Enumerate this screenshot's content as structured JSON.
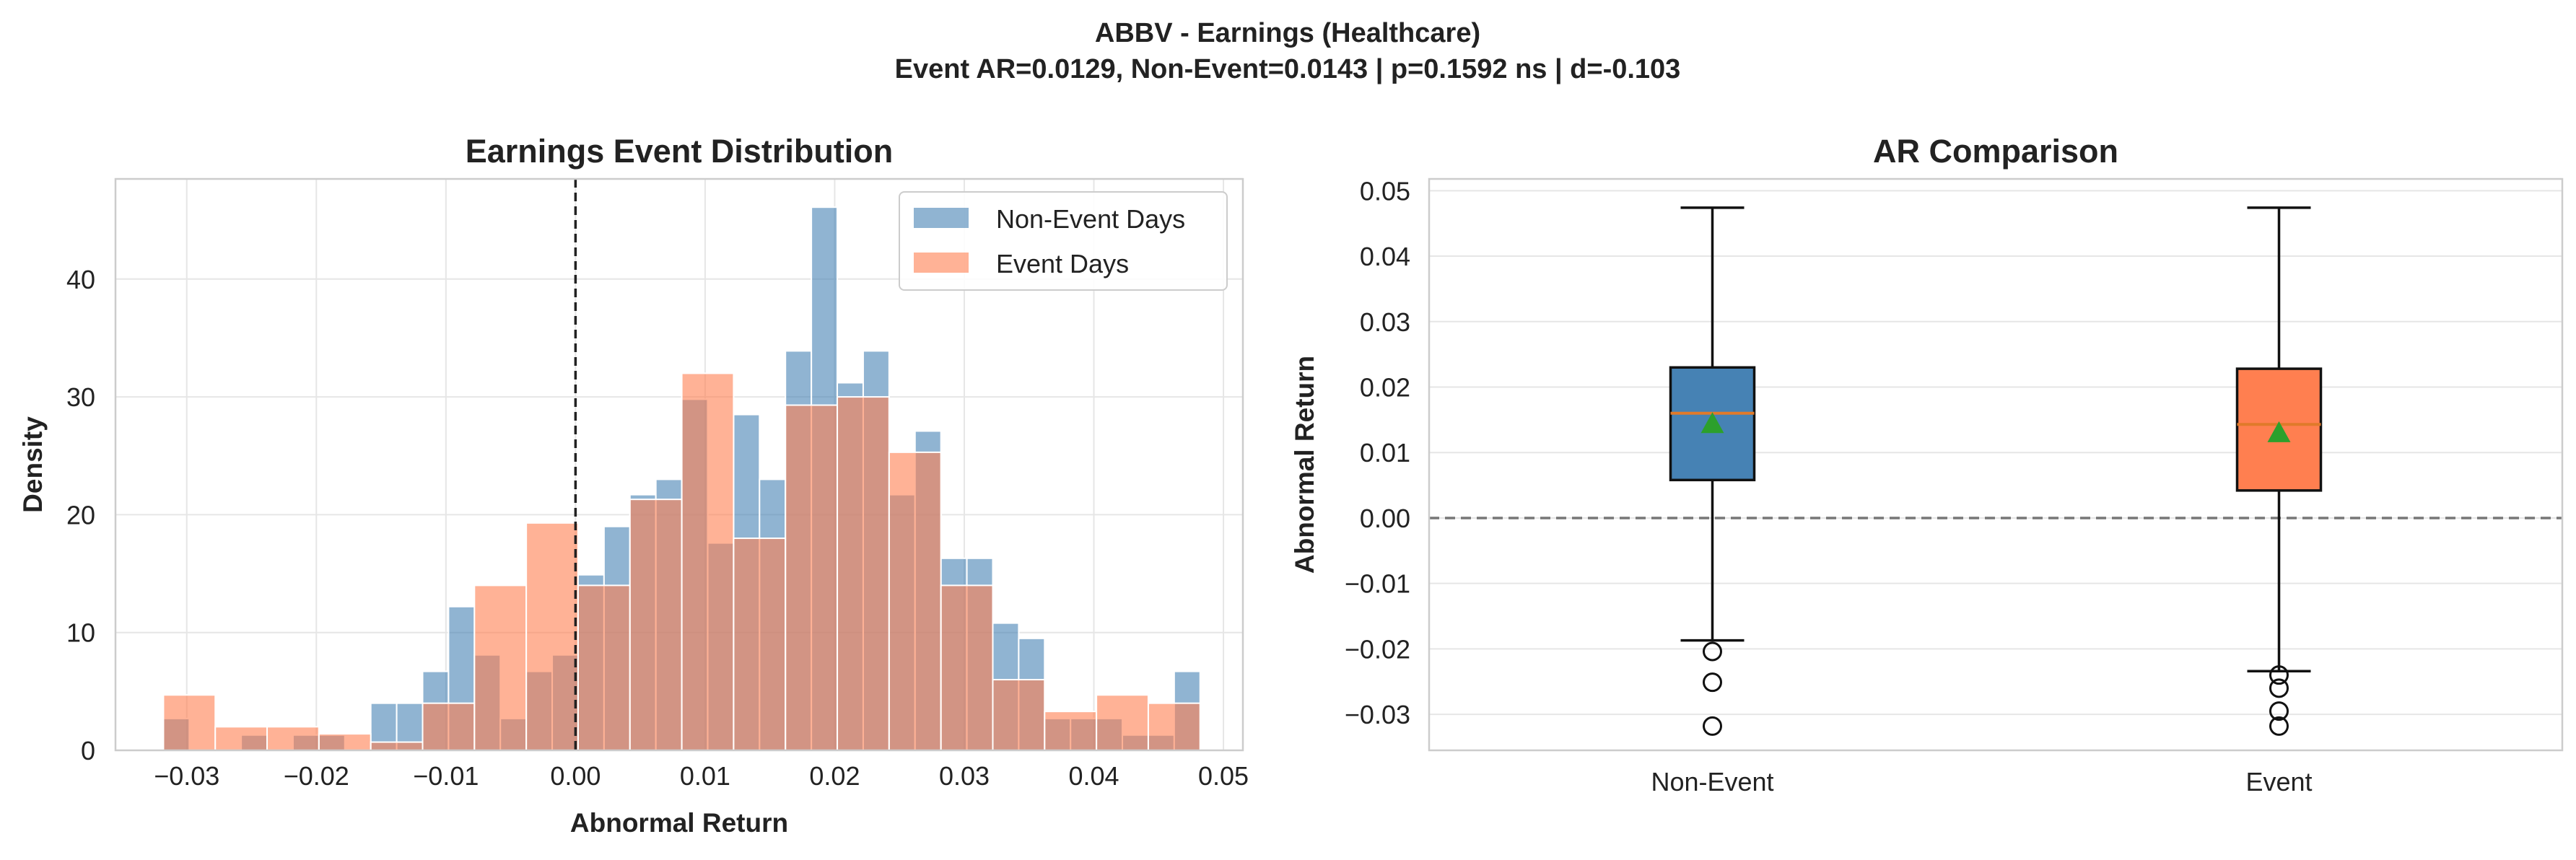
{
  "figure": {
    "title_line1": "ABBV - Earnings (Healthcare)",
    "title_line2": "Event AR=0.0129, Non-Event=0.0143 | p=0.1592 ns | d=-0.103"
  },
  "colors": {
    "non_event": "#4682b4",
    "event": "#ff7f50",
    "median": "#e07a2a",
    "mean_marker": "#2ca02c",
    "grid": "#e6e6e6",
    "spine": "#cccccc"
  },
  "chart_data": [
    {
      "type": "bar",
      "subtype": "histogram",
      "title": "Earnings Event Distribution",
      "xlabel": "Abnormal Return",
      "ylabel": "Density",
      "xlim": [
        -0.0355,
        0.0515
      ],
      "ylim": [
        0,
        48.5
      ],
      "xticks": [
        -0.03,
        -0.02,
        -0.01,
        0.0,
        0.01,
        0.02,
        0.03,
        0.04,
        0.05
      ],
      "xtick_labels": [
        "−0.03",
        "−0.02",
        "−0.01",
        "0.00",
        "0.01",
        "0.02",
        "0.03",
        "0.04",
        "0.05"
      ],
      "yticks": [
        0,
        10,
        20,
        30,
        40
      ],
      "ytick_labels": [
        "0",
        "10",
        "20",
        "30",
        "40"
      ],
      "reference_line": {
        "x": 0.0,
        "style": "dashed"
      },
      "legend": {
        "position": "upper-right",
        "entries": [
          "Non-Event Days",
          "Event Days"
        ]
      },
      "grid": true,
      "series": [
        {
          "name": "Non-Event Days",
          "bins": [
            [
              -0.0318,
              -0.0298,
              2.7
            ],
            [
              -0.0298,
              -0.0278,
              0
            ],
            [
              -0.0278,
              -0.0258,
              0
            ],
            [
              -0.0258,
              -0.0238,
              1.3
            ],
            [
              -0.0238,
              -0.0218,
              0
            ],
            [
              -0.0218,
              -0.0198,
              1.3
            ],
            [
              -0.0198,
              -0.0178,
              1.3
            ],
            [
              -0.0178,
              -0.0158,
              0
            ],
            [
              -0.0158,
              -0.0138,
              4.0
            ],
            [
              -0.0138,
              -0.0118,
              4.0
            ],
            [
              -0.0118,
              -0.0098,
              6.7
            ],
            [
              -0.0098,
              -0.0078,
              12.2
            ],
            [
              -0.0078,
              -0.0058,
              8.1
            ],
            [
              -0.0058,
              -0.0038,
              2.7
            ],
            [
              -0.0038,
              -0.0018,
              6.7
            ],
            [
              -0.0018,
              0.0002,
              8.1
            ],
            [
              0.0002,
              0.0022,
              14.9
            ],
            [
              0.0022,
              0.0042,
              19.0
            ],
            [
              0.0042,
              0.0062,
              21.7
            ],
            [
              0.0062,
              0.0082,
              23.0
            ],
            [
              0.0082,
              0.0102,
              29.8
            ],
            [
              0.0102,
              0.0122,
              17.6
            ],
            [
              0.0122,
              0.0142,
              28.5
            ],
            [
              0.0142,
              0.0162,
              23.0
            ],
            [
              0.0162,
              0.0182,
              33.9
            ],
            [
              0.0182,
              0.0202,
              46.1
            ],
            [
              0.0202,
              0.0222,
              31.2
            ],
            [
              0.0222,
              0.0242,
              33.9
            ],
            [
              0.0242,
              0.0262,
              21.7
            ],
            [
              0.0262,
              0.0282,
              27.1
            ],
            [
              0.0282,
              0.0302,
              16.3
            ],
            [
              0.0302,
              0.0322,
              16.3
            ],
            [
              0.0322,
              0.0342,
              10.8
            ],
            [
              0.0342,
              0.0362,
              9.5
            ],
            [
              0.0362,
              0.0382,
              2.7
            ],
            [
              0.0382,
              0.0402,
              2.7
            ],
            [
              0.0402,
              0.0422,
              2.7
            ],
            [
              0.0422,
              0.0442,
              1.3
            ],
            [
              0.0442,
              0.0462,
              1.3
            ],
            [
              0.0462,
              0.0482,
              6.7
            ]
          ]
        },
        {
          "name": "Event Days",
          "bins": [
            [
              -0.0318,
              -0.0278,
              4.7
            ],
            [
              -0.0278,
              -0.0238,
              2.0
            ],
            [
              -0.0238,
              -0.0198,
              2.0
            ],
            [
              -0.0198,
              -0.0158,
              1.4
            ],
            [
              -0.0158,
              -0.0118,
              0.7
            ],
            [
              -0.0118,
              -0.0078,
              4.0
            ],
            [
              -0.0078,
              -0.0038,
              14.0
            ],
            [
              -0.0038,
              0.0002,
              19.3
            ],
            [
              0.0002,
              0.0042,
              14.0
            ],
            [
              0.0042,
              0.0082,
              21.3
            ],
            [
              0.0082,
              0.0122,
              32.0
            ],
            [
              0.0122,
              0.0162,
              18.0
            ],
            [
              0.0162,
              0.0202,
              29.3
            ],
            [
              0.0202,
              0.0242,
              30.0
            ],
            [
              0.0242,
              0.0282,
              25.3
            ],
            [
              0.0282,
              0.0322,
              14.0
            ],
            [
              0.0322,
              0.0362,
              6.0
            ],
            [
              0.0362,
              0.0402,
              3.3
            ],
            [
              0.0402,
              0.0442,
              4.7
            ],
            [
              0.0442,
              0.0482,
              4.0
            ]
          ]
        }
      ]
    },
    {
      "type": "box",
      "title": "AR Comparison",
      "xlabel": "",
      "ylabel": "Abnormal Return",
      "ylim": [
        -0.0355,
        0.0518
      ],
      "yticks": [
        -0.03,
        -0.02,
        -0.01,
        0.0,
        0.01,
        0.02,
        0.03,
        0.04,
        0.05
      ],
      "ytick_labels": [
        "−0.03",
        "−0.02",
        "−0.01",
        "0.00",
        "0.01",
        "0.02",
        "0.03",
        "0.04",
        "0.05"
      ],
      "categories": [
        "Non-Event",
        "Event"
      ],
      "reference_line": {
        "y": 0.0,
        "style": "dashed"
      },
      "grid": true,
      "boxes": [
        {
          "label": "Non-Event",
          "whisker_low": -0.0187,
          "q1": 0.0058,
          "median": 0.016,
          "q3": 0.023,
          "whisker_high": 0.0474,
          "mean": 0.0143,
          "outliers": [
            -0.0204,
            -0.0251,
            -0.0318
          ]
        },
        {
          "label": "Event",
          "whisker_low": -0.0234,
          "q1": 0.0042,
          "median": 0.0143,
          "q3": 0.0228,
          "whisker_high": 0.0474,
          "mean": 0.0129,
          "outliers": [
            -0.024,
            -0.026,
            -0.0295,
            -0.0318
          ]
        }
      ]
    }
  ]
}
